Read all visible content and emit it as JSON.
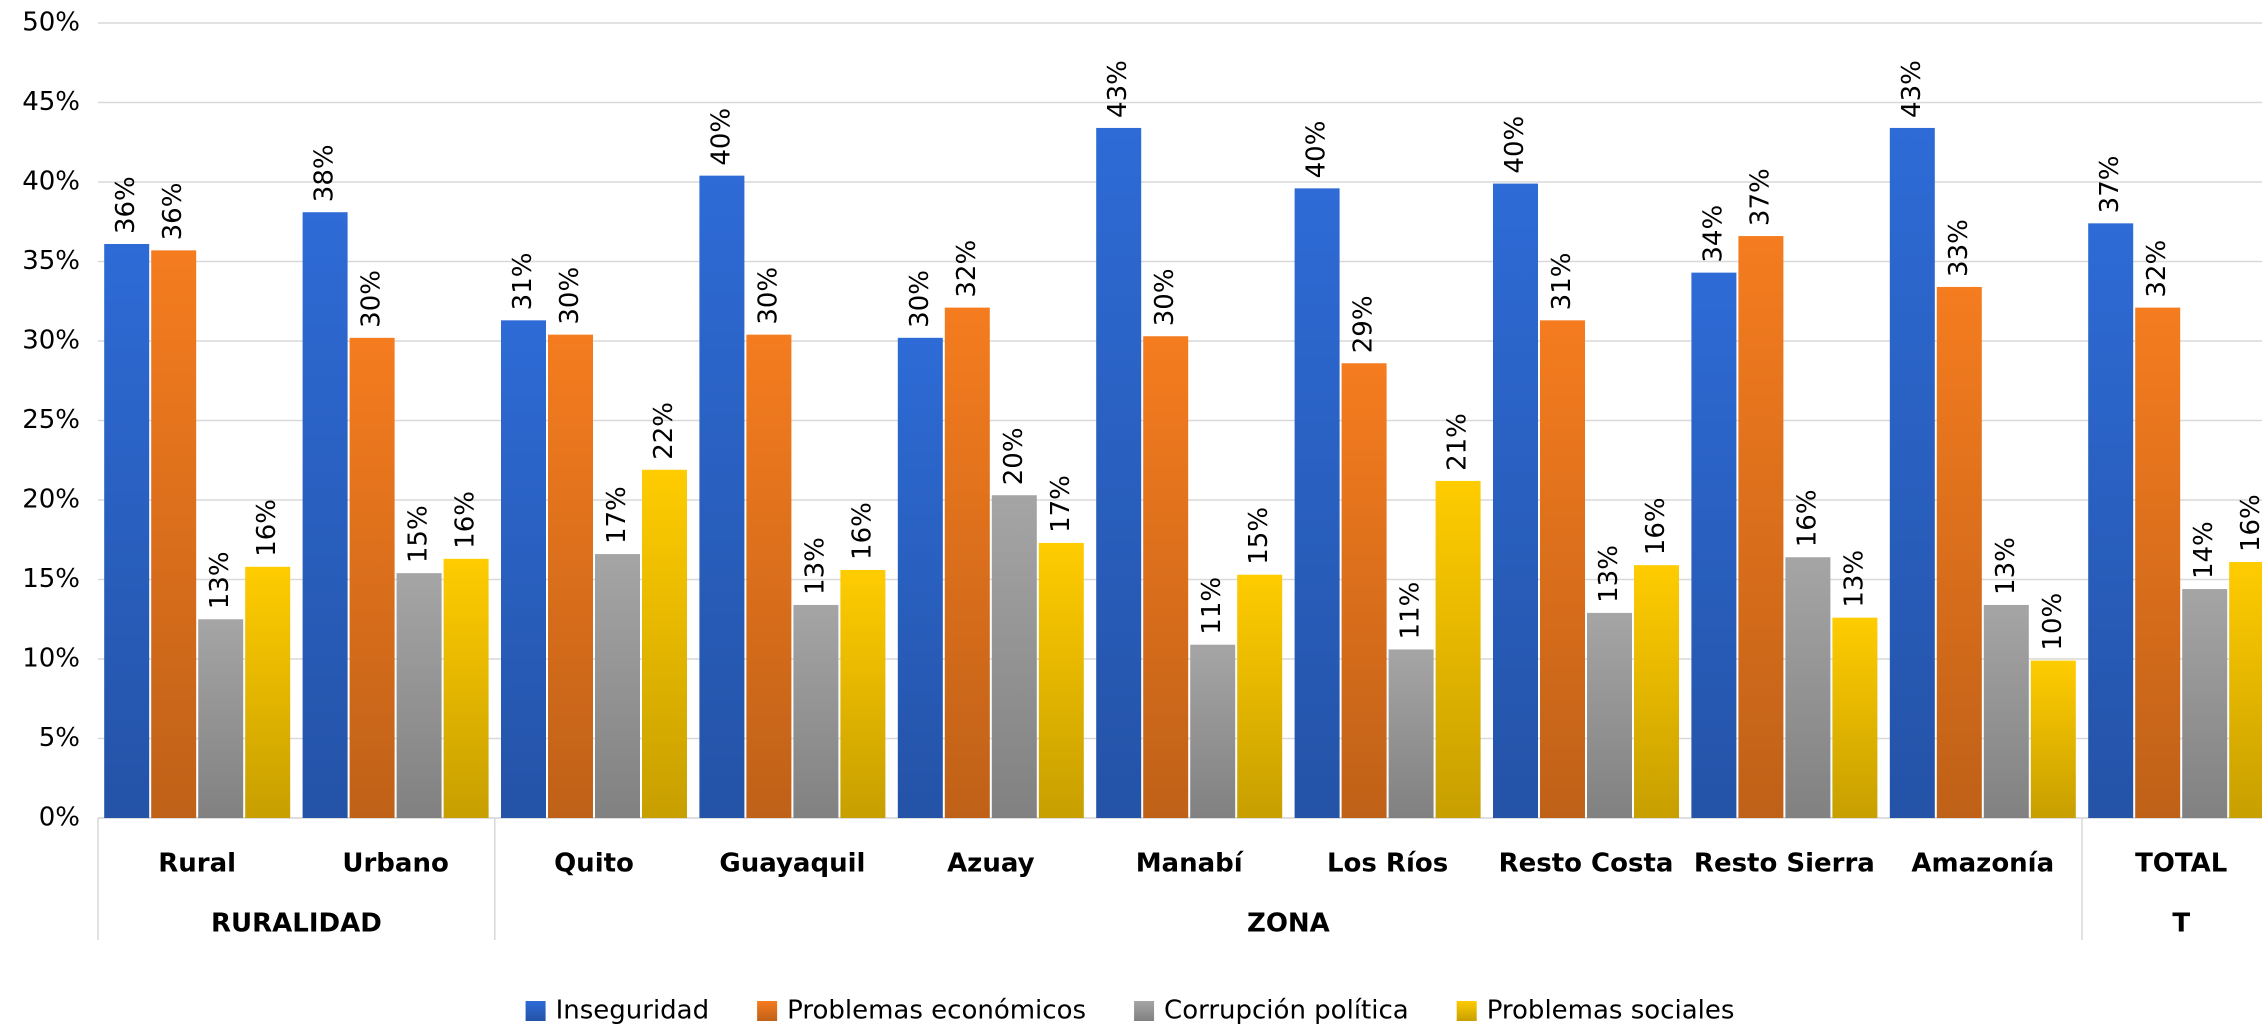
{
  "chart_data": {
    "type": "bar",
    "categories": [
      "Rural",
      "Urbano",
      "Quito",
      "Guayaquil",
      "Azuay",
      "Manabí",
      "Los Ríos",
      "Resto Costa",
      "Resto Sierra",
      "Amazonía",
      "TOTAL"
    ],
    "groups": [
      {
        "label": "RURALIDAD",
        "size": 2
      },
      {
        "label": "ZONA",
        "size": 8
      },
      {
        "label": "T",
        "size": 1
      }
    ],
    "series": [
      {
        "name": "Inseguridad",
        "color": "#2e6bd6",
        "values": [
          36.1,
          38.1,
          31.3,
          40.4,
          30.2,
          43.4,
          39.6,
          39.9,
          34.3,
          43.4,
          37.4
        ],
        "value_labels": [
          "36%",
          "38%",
          "31%",
          "40%",
          "30%",
          "43%",
          "40%",
          "40%",
          "34%",
          "43%",
          "37%"
        ]
      },
      {
        "name": "Problemas económicos",
        "color": "#f57c1f",
        "values": [
          35.7,
          30.2,
          30.4,
          30.4,
          32.1,
          30.3,
          28.6,
          31.3,
          36.6,
          33.4,
          32.1
        ],
        "value_labels": [
          "36%",
          "30%",
          "30%",
          "30%",
          "32%",
          "30%",
          "29%",
          "31%",
          "37%",
          "33%",
          "32%"
        ]
      },
      {
        "name": "Corrupción política",
        "color": "#a5a5a5",
        "values": [
          12.5,
          15.4,
          16.6,
          13.4,
          20.3,
          10.9,
          10.6,
          12.9,
          16.4,
          13.4,
          14.4
        ],
        "value_labels": [
          "13%",
          "15%",
          "17%",
          "13%",
          "20%",
          "11%",
          "11%",
          "13%",
          "16%",
          "13%",
          "14%"
        ]
      },
      {
        "name": "Problemas sociales",
        "color": "#ffcc00",
        "values": [
          15.8,
          16.3,
          21.9,
          15.6,
          17.3,
          15.3,
          21.2,
          15.9,
          12.6,
          9.9,
          16.1
        ],
        "value_labels": [
          "16%",
          "16%",
          "22%",
          "16%",
          "17%",
          "15%",
          "21%",
          "16%",
          "13%",
          "10%",
          "16%"
        ]
      }
    ],
    "ylim": [
      0,
      50
    ],
    "yticks": [
      {
        "value": 0,
        "label": "0%"
      },
      {
        "value": 5,
        "label": "5%"
      },
      {
        "value": 10,
        "label": "10%"
      },
      {
        "value": 15,
        "label": "15%"
      },
      {
        "value": 20,
        "label": "20%"
      },
      {
        "value": 25,
        "label": "25%"
      },
      {
        "value": 30,
        "label": "30%"
      },
      {
        "value": 35,
        "label": "35%"
      },
      {
        "value": 40,
        "label": "40%"
      },
      {
        "value": 45,
        "label": "45%"
      },
      {
        "value": 50,
        "label": "50%"
      }
    ],
    "grid": true,
    "legend": "bottom"
  }
}
